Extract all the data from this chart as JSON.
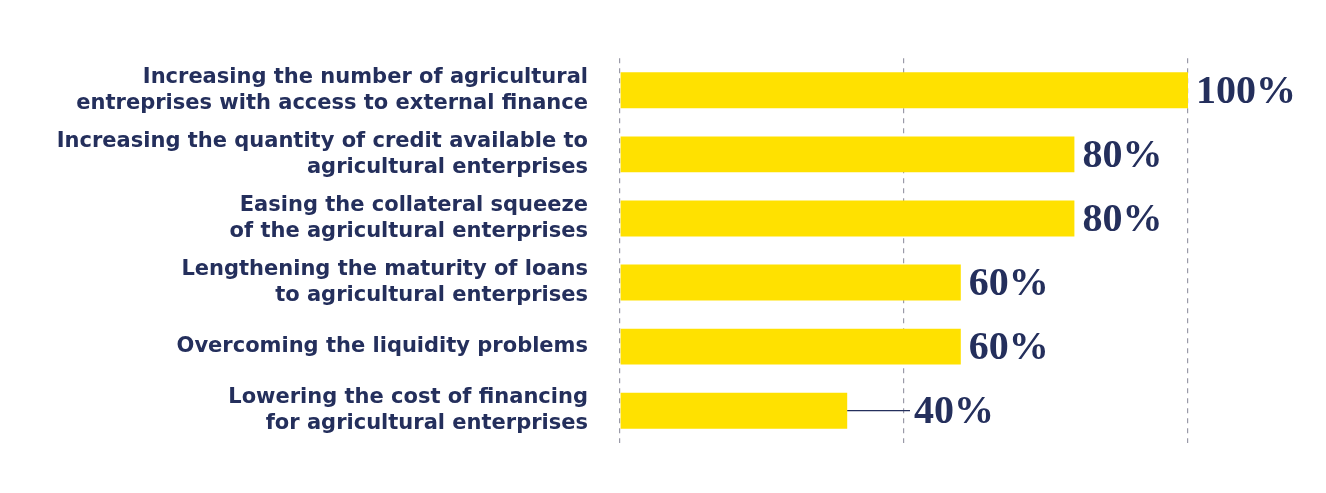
{
  "chart_data": {
    "type": "bar",
    "orientation": "horizontal",
    "categories": [
      "Increasing the number of agricultural\nentreprises with access to external finance",
      "Increasing the quantity of credit available to\nagricultural enterprises",
      "Easing the collateral squeeze\nof the agricultural enterprises",
      "Lengthening the maturity of loans\nto agricultural enterprises",
      "Overcoming the liquidity problems",
      "Lowering the cost of financing\nfor agricultural enterprises"
    ],
    "values": [
      100,
      80,
      80,
      60,
      60,
      40
    ],
    "value_labels": [
      "100%",
      "80%",
      "80%",
      "60%",
      "60%",
      "40%"
    ],
    "color": "#ffe100",
    "xlim": [
      0,
      100
    ],
    "xticks": [
      0,
      50,
      100
    ],
    "grid": "x",
    "tick_labels": "y",
    "legend": false
  }
}
